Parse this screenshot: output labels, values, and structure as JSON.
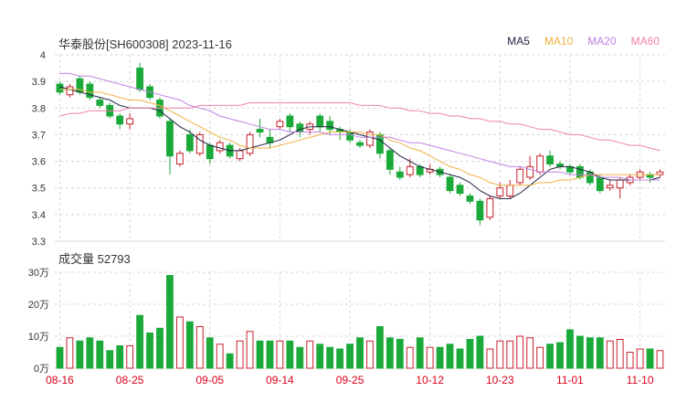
{
  "header": {
    "title": "华泰股份[SH600308] 2023-11-16",
    "volume_label": "成交量 52793"
  },
  "legend": [
    {
      "name": "MA5",
      "color": "#222244"
    },
    {
      "name": "MA10",
      "color": "#f0b040"
    },
    {
      "name": "MA20",
      "color": "#c080e0"
    },
    {
      "name": "MA60",
      "color": "#f080b0"
    }
  ],
  "colors": {
    "up": "#c8202c",
    "down": "#1aaa3a",
    "grid": "#d8d8d8",
    "date": "#d9001b"
  },
  "chart_data": [
    {
      "type": "candlestick",
      "ylim": [
        3.3,
        4.0
      ],
      "yticks": [
        "4",
        "3.9",
        "3.8",
        "3.7",
        "3.6",
        "3.5",
        "3.4",
        "3.3"
      ],
      "xticks": [
        {
          "label": "08-16",
          "index": 0
        },
        {
          "label": "08-25",
          "index": 7
        },
        {
          "label": "09-05",
          "index": 15
        },
        {
          "label": "09-14",
          "index": 22
        },
        {
          "label": "09-25",
          "index": 29
        },
        {
          "label": "10-12",
          "index": 37
        },
        {
          "label": "10-23",
          "index": 44
        },
        {
          "label": "11-01",
          "index": 51
        },
        {
          "label": "11-10",
          "index": 58
        }
      ],
      "candles": [
        [
          3.89,
          3.86,
          3.9,
          3.85
        ],
        [
          3.85,
          3.88,
          3.89,
          3.84
        ],
        [
          3.91,
          3.86,
          3.92,
          3.85
        ],
        [
          3.89,
          3.84,
          3.9,
          3.83
        ],
        [
          3.83,
          3.81,
          3.84,
          3.8
        ],
        [
          3.81,
          3.77,
          3.82,
          3.76
        ],
        [
          3.77,
          3.74,
          3.78,
          3.72
        ],
        [
          3.74,
          3.76,
          3.78,
          3.72
        ],
        [
          3.95,
          3.87,
          3.97,
          3.86
        ],
        [
          3.88,
          3.84,
          3.89,
          3.83
        ],
        [
          3.83,
          3.77,
          3.84,
          3.76
        ],
        [
          3.75,
          3.62,
          3.76,
          3.55
        ],
        [
          3.59,
          3.63,
          3.64,
          3.58
        ],
        [
          3.7,
          3.64,
          3.72,
          3.63
        ],
        [
          3.63,
          3.7,
          3.71,
          3.62
        ],
        [
          3.66,
          3.61,
          3.67,
          3.59
        ],
        [
          3.64,
          3.67,
          3.68,
          3.63
        ],
        [
          3.66,
          3.62,
          3.67,
          3.61
        ],
        [
          3.61,
          3.64,
          3.65,
          3.6
        ],
        [
          3.63,
          3.7,
          3.71,
          3.62
        ],
        [
          3.72,
          3.71,
          3.76,
          3.69
        ],
        [
          3.69,
          3.67,
          3.72,
          3.65
        ],
        [
          3.73,
          3.75,
          3.76,
          3.72
        ],
        [
          3.77,
          3.73,
          3.78,
          3.71
        ],
        [
          3.74,
          3.71,
          3.75,
          3.69
        ],
        [
          3.72,
          3.74,
          3.75,
          3.7
        ],
        [
          3.77,
          3.73,
          3.78,
          3.71
        ],
        [
          3.75,
          3.72,
          3.77,
          3.7
        ],
        [
          3.72,
          3.71,
          3.73,
          3.68
        ],
        [
          3.71,
          3.68,
          3.72,
          3.67
        ],
        [
          3.67,
          3.66,
          3.68,
          3.65
        ],
        [
          3.66,
          3.71,
          3.72,
          3.65
        ],
        [
          3.7,
          3.63,
          3.71,
          3.61
        ],
        [
          3.64,
          3.57,
          3.65,
          3.55
        ],
        [
          3.56,
          3.54,
          3.58,
          3.53
        ],
        [
          3.55,
          3.58,
          3.61,
          3.54
        ],
        [
          3.58,
          3.55,
          3.59,
          3.54
        ],
        [
          3.56,
          3.57,
          3.59,
          3.55
        ],
        [
          3.57,
          3.55,
          3.58,
          3.54
        ],
        [
          3.54,
          3.49,
          3.55,
          3.48
        ],
        [
          3.51,
          3.48,
          3.52,
          3.47
        ],
        [
          3.47,
          3.45,
          3.48,
          3.44
        ],
        [
          3.45,
          3.38,
          3.46,
          3.36
        ],
        [
          3.39,
          3.46,
          3.47,
          3.38
        ],
        [
          3.47,
          3.5,
          3.52,
          3.46
        ],
        [
          3.47,
          3.51,
          3.53,
          3.46
        ],
        [
          3.52,
          3.57,
          3.58,
          3.51
        ],
        [
          3.54,
          3.58,
          3.62,
          3.53
        ],
        [
          3.56,
          3.62,
          3.63,
          3.55
        ],
        [
          3.62,
          3.59,
          3.64,
          3.58
        ],
        [
          3.59,
          3.58,
          3.6,
          3.57
        ],
        [
          3.58,
          3.56,
          3.59,
          3.55
        ],
        [
          3.58,
          3.54,
          3.59,
          3.53
        ],
        [
          3.56,
          3.52,
          3.57,
          3.51
        ],
        [
          3.54,
          3.49,
          3.55,
          3.48
        ],
        [
          3.5,
          3.51,
          3.53,
          3.49
        ],
        [
          3.5,
          3.53,
          3.54,
          3.46
        ],
        [
          3.52,
          3.54,
          3.55,
          3.51
        ],
        [
          3.54,
          3.56,
          3.57,
          3.53
        ],
        [
          3.55,
          3.54,
          3.56,
          3.52
        ],
        [
          3.55,
          3.56,
          3.57,
          3.54
        ]
      ],
      "ma": {
        "MA5": [
          3.88,
          3.87,
          3.86,
          3.85,
          3.84,
          3.83,
          3.81,
          3.8,
          3.8,
          3.8,
          3.79,
          3.76,
          3.73,
          3.71,
          3.68,
          3.66,
          3.65,
          3.64,
          3.64,
          3.65,
          3.66,
          3.67,
          3.68,
          3.7,
          3.72,
          3.73,
          3.73,
          3.73,
          3.72,
          3.71,
          3.7,
          3.69,
          3.68,
          3.65,
          3.62,
          3.6,
          3.58,
          3.57,
          3.56,
          3.55,
          3.54,
          3.52,
          3.49,
          3.47,
          3.46,
          3.46,
          3.48,
          3.51,
          3.54,
          3.57,
          3.58,
          3.58,
          3.57,
          3.56,
          3.54,
          3.53,
          3.53,
          3.53,
          3.53,
          3.53,
          3.54
        ],
        "MA10": [
          3.87,
          3.87,
          3.87,
          3.86,
          3.86,
          3.85,
          3.84,
          3.83,
          3.83,
          3.82,
          3.81,
          3.79,
          3.77,
          3.75,
          3.73,
          3.71,
          3.69,
          3.68,
          3.66,
          3.65,
          3.65,
          3.65,
          3.66,
          3.67,
          3.68,
          3.69,
          3.7,
          3.71,
          3.71,
          3.71,
          3.71,
          3.7,
          3.7,
          3.68,
          3.67,
          3.65,
          3.64,
          3.62,
          3.6,
          3.58,
          3.57,
          3.55,
          3.54,
          3.52,
          3.51,
          3.51,
          3.51,
          3.51,
          3.52,
          3.52,
          3.53,
          3.53,
          3.54,
          3.55,
          3.55,
          3.55,
          3.55,
          3.55,
          3.55,
          3.55,
          3.55
        ],
        "MA20": [
          3.93,
          3.93,
          3.92,
          3.92,
          3.91,
          3.9,
          3.89,
          3.88,
          3.87,
          3.86,
          3.85,
          3.84,
          3.83,
          3.81,
          3.8,
          3.79,
          3.77,
          3.76,
          3.75,
          3.74,
          3.73,
          3.72,
          3.72,
          3.71,
          3.71,
          3.71,
          3.71,
          3.7,
          3.7,
          3.7,
          3.69,
          3.69,
          3.69,
          3.69,
          3.68,
          3.67,
          3.67,
          3.66,
          3.65,
          3.64,
          3.63,
          3.62,
          3.61,
          3.6,
          3.59,
          3.58,
          3.58,
          3.57,
          3.56,
          3.56,
          3.56,
          3.55,
          3.55,
          3.55,
          3.54,
          3.54,
          3.54,
          3.53,
          3.53,
          3.53,
          3.53
        ],
        "MA60": [
          3.77,
          3.78,
          3.78,
          3.79,
          3.79,
          3.79,
          3.79,
          3.8,
          3.8,
          3.8,
          3.8,
          3.8,
          3.8,
          3.8,
          3.81,
          3.81,
          3.81,
          3.81,
          3.81,
          3.82,
          3.82,
          3.82,
          3.82,
          3.82,
          3.82,
          3.82,
          3.82,
          3.82,
          3.82,
          3.82,
          3.81,
          3.81,
          3.81,
          3.8,
          3.8,
          3.79,
          3.79,
          3.78,
          3.78,
          3.77,
          3.77,
          3.76,
          3.76,
          3.75,
          3.75,
          3.74,
          3.74,
          3.73,
          3.72,
          3.72,
          3.71,
          3.7,
          3.7,
          3.69,
          3.68,
          3.68,
          3.67,
          3.66,
          3.66,
          3.65,
          3.64
        ]
      }
    },
    {
      "type": "bar",
      "ylim": [
        0,
        30
      ],
      "yticks": [
        "30万",
        "20万",
        "10万",
        "0万"
      ],
      "values": [
        6.5,
        9.5,
        8.5,
        9.5,
        8.5,
        5.5,
        7.0,
        7.0,
        16.5,
        11.0,
        12.5,
        29.0,
        16.0,
        14.5,
        13.0,
        9.5,
        7.5,
        4.5,
        8.5,
        11.5,
        8.5,
        8.5,
        8.5,
        8.5,
        6.5,
        8.5,
        7.5,
        6.5,
        6.0,
        7.5,
        9.5,
        8.5,
        13.0,
        9.5,
        9.0,
        6.5,
        9.5,
        6.5,
        6.5,
        7.5,
        6.0,
        9.0,
        10.0,
        6.0,
        8.5,
        8.5,
        10.0,
        9.5,
        6.5,
        7.5,
        8.0,
        12.0,
        10.0,
        9.5,
        9.5,
        8.5,
        9.0,
        5.0,
        6.0,
        6.0,
        5.5
      ]
    }
  ]
}
